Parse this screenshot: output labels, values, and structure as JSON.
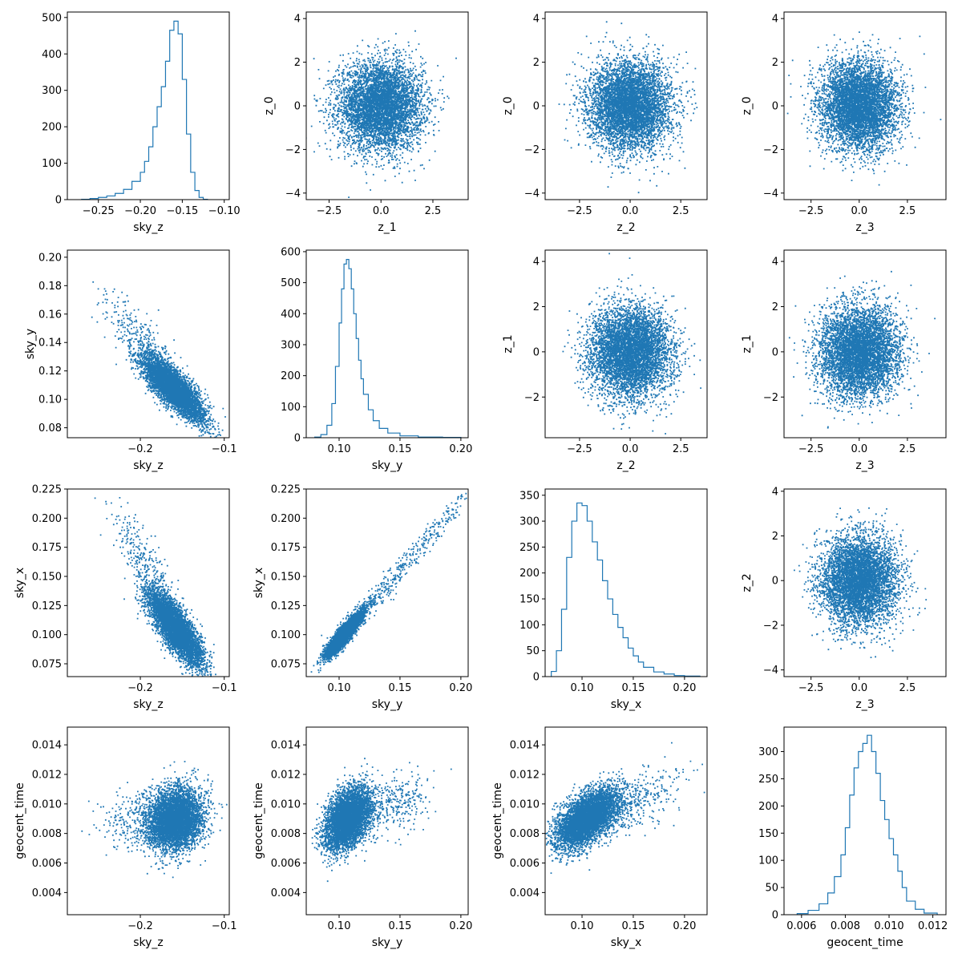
{
  "figure": {
    "type": "corner-plot",
    "marker_color": "#1f77b4",
    "background": "#ffffff"
  },
  "chart_data": [
    {
      "id": "hist-sky_z",
      "type": "histogram",
      "xlabel": "sky_z",
      "ylabel": "",
      "xlim": [
        -0.287,
        -0.094
      ],
      "ylim": [
        0,
        515
      ],
      "xticks": [
        -0.25,
        -0.2,
        -0.15,
        -0.1
      ],
      "xtick_labels": [
        "−0.25",
        "−0.20",
        "−0.15",
        "−0.10"
      ],
      "yticks": [
        0,
        100,
        200,
        300,
        400,
        500
      ],
      "ytick_labels": [
        "0",
        "100",
        "200",
        "300",
        "400",
        "500"
      ],
      "bin_edges": [
        -0.27,
        -0.26,
        -0.25,
        -0.24,
        -0.23,
        -0.22,
        -0.21,
        -0.2,
        -0.195,
        -0.19,
        -0.185,
        -0.18,
        -0.175,
        -0.17,
        -0.165,
        -0.16,
        -0.155,
        -0.15,
        -0.145,
        -0.14,
        -0.135,
        -0.13,
        -0.125,
        -0.12
      ],
      "counts": [
        1,
        3,
        6,
        10,
        17,
        28,
        50,
        75,
        105,
        145,
        200,
        255,
        310,
        380,
        465,
        490,
        455,
        330,
        180,
        75,
        25,
        6,
        1
      ]
    },
    {
      "id": "scatter-z_1-z_0",
      "type": "scatter",
      "xlabel": "z_1",
      "ylabel": "z_0",
      "xlim": [
        -3.6,
        4.2
      ],
      "ylim": [
        -4.3,
        4.3
      ],
      "xticks": [
        -2.5,
        0,
        2.5
      ],
      "xtick_labels": [
        "−2.5",
        "0.0",
        "2.5"
      ],
      "yticks": [
        -4,
        -2,
        0,
        2,
        4
      ],
      "ytick_labels": [
        "−4",
        "−2",
        "0",
        "2",
        "4"
      ],
      "cloud": {
        "shape": "gaussian",
        "n_points": 10000,
        "mean": [
          0,
          0
        ],
        "std": [
          1,
          1
        ],
        "corr": 0
      }
    },
    {
      "id": "scatter-z_2-z_0",
      "type": "scatter",
      "xlabel": "z_2",
      "ylabel": "z_0",
      "xlim": [
        -4.2,
        3.8
      ],
      "ylim": [
        -4.3,
        4.3
      ],
      "xticks": [
        -2.5,
        0,
        2.5
      ],
      "xtick_labels": [
        "−2.5",
        "0.0",
        "2.5"
      ],
      "yticks": [
        -4,
        -2,
        0,
        2,
        4
      ],
      "ytick_labels": [
        "−4",
        "−2",
        "0",
        "2",
        "4"
      ],
      "cloud": {
        "shape": "gaussian",
        "n_points": 10000,
        "mean": [
          0,
          0
        ],
        "std": [
          1,
          1
        ],
        "corr": 0
      }
    },
    {
      "id": "scatter-z_3-z_0",
      "type": "scatter",
      "xlabel": "z_3",
      "ylabel": "z_0",
      "xlim": [
        -3.9,
        4.5
      ],
      "ylim": [
        -4.3,
        4.3
      ],
      "xticks": [
        -2.5,
        0,
        2.5
      ],
      "xtick_labels": [
        "−2.5",
        "0.0",
        "2.5"
      ],
      "yticks": [
        -4,
        -2,
        0,
        2,
        4
      ],
      "ytick_labels": [
        "−4",
        "−2",
        "0",
        "2",
        "4"
      ],
      "cloud": {
        "shape": "gaussian",
        "n_points": 10000,
        "mean": [
          0,
          0
        ],
        "std": [
          1,
          1
        ],
        "corr": 0
      }
    },
    {
      "id": "scatter-sky_z-sky_y",
      "type": "scatter",
      "xlabel": "sky_z",
      "ylabel": "sky_y",
      "xlim": [
        -0.287,
        -0.094
      ],
      "ylim": [
        0.073,
        0.205
      ],
      "xticks": [
        -0.2,
        -0.1
      ],
      "xtick_labels": [
        "−0.2",
        "−0.1"
      ],
      "yticks": [
        0.08,
        0.1,
        0.12,
        0.14,
        0.16,
        0.18,
        0.2
      ],
      "ytick_labels": [
        "0.08",
        "0.10",
        "0.12",
        "0.14",
        "0.16",
        "0.18",
        "0.20"
      ],
      "cloud": {
        "shape": "skewed",
        "n_points": 10000,
        "mean": [
          -0.16,
          0.107
        ],
        "std": [
          0.018,
          0.011
        ],
        "corr": -0.8,
        "tail_dir": [
          -0.068,
          0.058
        ]
      }
    },
    {
      "id": "hist-sky_y",
      "type": "histogram",
      "xlabel": "sky_y",
      "ylabel": "",
      "xlim": [
        0.073,
        0.206
      ],
      "ylim": [
        0,
        605
      ],
      "xticks": [
        0.1,
        0.15,
        0.2
      ],
      "xtick_labels": [
        "0.10",
        "0.15",
        "0.20"
      ],
      "yticks": [
        0,
        100,
        200,
        300,
        400,
        500,
        600
      ],
      "ytick_labels": [
        "0",
        "100",
        "200",
        "300",
        "400",
        "500",
        "600"
      ],
      "bin_edges": [
        0.08,
        0.085,
        0.09,
        0.094,
        0.097,
        0.1,
        0.102,
        0.104,
        0.106,
        0.108,
        0.11,
        0.112,
        0.114,
        0.116,
        0.118,
        0.12,
        0.124,
        0.128,
        0.133,
        0.14,
        0.15,
        0.165,
        0.185,
        0.2
      ],
      "counts": [
        2,
        10,
        40,
        110,
        230,
        370,
        480,
        560,
        575,
        545,
        480,
        400,
        320,
        250,
        190,
        140,
        90,
        55,
        30,
        15,
        6,
        2,
        1
      ]
    },
    {
      "id": "scatter-z_2-z_1",
      "type": "scatter",
      "xlabel": "z_2",
      "ylabel": "z_1",
      "xlim": [
        -4.2,
        3.8
      ],
      "ylim": [
        -3.8,
        4.5
      ],
      "xticks": [
        -2.5,
        0,
        2.5
      ],
      "xtick_labels": [
        "−2.5",
        "0.0",
        "2.5"
      ],
      "yticks": [
        -2,
        0,
        2,
        4
      ],
      "ytick_labels": [
        "−2",
        "0",
        "2",
        "4"
      ],
      "cloud": {
        "shape": "gaussian",
        "n_points": 10000,
        "mean": [
          0,
          0
        ],
        "std": [
          1,
          1
        ],
        "corr": 0
      }
    },
    {
      "id": "scatter-z_3-z_1",
      "type": "scatter",
      "xlabel": "z_3",
      "ylabel": "z_1",
      "xlim": [
        -3.9,
        4.5
      ],
      "ylim": [
        -3.8,
        4.5
      ],
      "xticks": [
        -2.5,
        0,
        2.5
      ],
      "xtick_labels": [
        "−2.5",
        "0.0",
        "2.5"
      ],
      "yticks": [
        -2,
        0,
        2,
        4
      ],
      "ytick_labels": [
        "−2",
        "0",
        "2",
        "4"
      ],
      "cloud": {
        "shape": "gaussian",
        "n_points": 10000,
        "mean": [
          0,
          0
        ],
        "std": [
          1,
          1
        ],
        "corr": 0
      }
    },
    {
      "id": "scatter-sky_z-sky_x",
      "type": "scatter",
      "xlabel": "sky_z",
      "ylabel": "sky_x",
      "xlim": [
        -0.287,
        -0.094
      ],
      "ylim": [
        0.064,
        0.225
      ],
      "xticks": [
        -0.2,
        -0.1
      ],
      "xtick_labels": [
        "−0.2",
        "−0.1"
      ],
      "yticks": [
        0.075,
        0.1,
        0.125,
        0.15,
        0.175,
        0.2,
        0.225
      ],
      "ytick_labels": [
        "0.075",
        "0.100",
        "0.125",
        "0.150",
        "0.175",
        "0.200",
        "0.225"
      ],
      "cloud": {
        "shape": "skewed",
        "n_points": 10000,
        "mean": [
          -0.158,
          0.105
        ],
        "std": [
          0.016,
          0.016
        ],
        "corr": -0.8,
        "tail_dir": [
          -0.06,
          0.09
        ]
      }
    },
    {
      "id": "scatter-sky_y-sky_x",
      "type": "scatter",
      "xlabel": "sky_y",
      "ylabel": "sky_x",
      "xlim": [
        0.073,
        0.206
      ],
      "ylim": [
        0.064,
        0.225
      ],
      "xticks": [
        0.1,
        0.15,
        0.2
      ],
      "xtick_labels": [
        "0.10",
        "0.15",
        "0.20"
      ],
      "yticks": [
        0.075,
        0.1,
        0.125,
        0.15,
        0.175,
        0.2,
        0.225
      ],
      "ytick_labels": [
        "0.075",
        "0.100",
        "0.125",
        "0.150",
        "0.175",
        "0.200",
        "0.225"
      ],
      "cloud": {
        "shape": "skewed",
        "n_points": 10000,
        "mean": [
          0.104,
          0.1
        ],
        "std": [
          0.007,
          0.009
        ],
        "corr": 0.9,
        "tail_dir": [
          0.092,
          0.11
        ]
      }
    },
    {
      "id": "hist-sky_x",
      "type": "histogram",
      "xlabel": "sky_x",
      "ylabel": "",
      "xlim": [
        0.064,
        0.222
      ],
      "ylim": [
        0,
        362
      ],
      "xticks": [
        0.1,
        0.15,
        0.2
      ],
      "xtick_labels": [
        "0.10",
        "0.15",
        "0.20"
      ],
      "yticks": [
        0,
        50,
        100,
        150,
        200,
        250,
        300,
        350
      ],
      "ytick_labels": [
        "0",
        "50",
        "100",
        "150",
        "200",
        "250",
        "300",
        "350"
      ],
      "bin_edges": [
        0.07,
        0.075,
        0.08,
        0.085,
        0.09,
        0.095,
        0.1,
        0.105,
        0.11,
        0.115,
        0.12,
        0.125,
        0.13,
        0.135,
        0.14,
        0.145,
        0.15,
        0.155,
        0.16,
        0.17,
        0.18,
        0.19,
        0.2,
        0.215
      ],
      "counts": [
        10,
        50,
        130,
        230,
        300,
        335,
        330,
        300,
        260,
        225,
        185,
        150,
        120,
        95,
        75,
        55,
        40,
        28,
        18,
        9,
        5,
        2,
        1
      ]
    },
    {
      "id": "scatter-z_3-z_2",
      "type": "scatter",
      "xlabel": "z_3",
      "ylabel": "z_2",
      "xlim": [
        -3.9,
        4.5
      ],
      "ylim": [
        -4.3,
        4.1
      ],
      "xticks": [
        -2.5,
        0,
        2.5
      ],
      "xtick_labels": [
        "−2.5",
        "0.0",
        "2.5"
      ],
      "yticks": [
        -4,
        -2,
        0,
        2,
        4
      ],
      "ytick_labels": [
        "−4",
        "−2",
        "0",
        "2",
        "4"
      ],
      "cloud": {
        "shape": "gaussian",
        "n_points": 10000,
        "mean": [
          0,
          0
        ],
        "std": [
          1,
          1
        ],
        "corr": 0
      }
    },
    {
      "id": "scatter-sky_z-geocent_time",
      "type": "scatter",
      "xlabel": "sky_z",
      "ylabel": "geocent_time",
      "xlim": [
        -0.287,
        -0.094
      ],
      "ylim": [
        0.0025,
        0.0152
      ],
      "xticks": [
        -0.2,
        -0.1
      ],
      "xtick_labels": [
        "−0.2",
        "−0.1"
      ],
      "yticks": [
        0.004,
        0.006,
        0.008,
        0.01,
        0.012,
        0.014
      ],
      "ytick_labels": [
        "0.004",
        "0.006",
        "0.008",
        "0.010",
        "0.012",
        "0.014"
      ],
      "cloud": {
        "shape": "skewed",
        "n_points": 10000,
        "mean": [
          -0.158,
          0.009
        ],
        "std": [
          0.016,
          0.001
        ],
        "corr": 0.1,
        "tail_dir": [
          -0.07,
          -0.0005
        ]
      }
    },
    {
      "id": "scatter-sky_y-geocent_time",
      "type": "scatter",
      "xlabel": "sky_y",
      "ylabel": "geocent_time",
      "xlim": [
        0.073,
        0.206
      ],
      "ylim": [
        0.0025,
        0.0152
      ],
      "xticks": [
        0.1,
        0.15,
        0.2
      ],
      "xtick_labels": [
        "0.10",
        "0.15",
        "0.20"
      ],
      "yticks": [
        0.004,
        0.006,
        0.008,
        0.01,
        0.012,
        0.014
      ],
      "ytick_labels": [
        "0.004",
        "0.006",
        "0.008",
        "0.010",
        "0.012",
        "0.014"
      ],
      "cloud": {
        "shape": "skewed",
        "n_points": 10000,
        "mean": [
          0.107,
          0.009
        ],
        "std": [
          0.009,
          0.001
        ],
        "corr": 0.4,
        "tail_dir": [
          0.06,
          0.0015
        ]
      }
    },
    {
      "id": "scatter-sky_x-geocent_time",
      "type": "scatter",
      "xlabel": "sky_x",
      "ylabel": "geocent_time",
      "xlim": [
        0.064,
        0.222
      ],
      "ylim": [
        0.0025,
        0.0152
      ],
      "xticks": [
        0.1,
        0.15,
        0.2
      ],
      "xtick_labels": [
        "0.10",
        "0.15",
        "0.20"
      ],
      "yticks": [
        0.004,
        0.006,
        0.008,
        0.01,
        0.012,
        0.014
      ],
      "ytick_labels": [
        "0.004",
        "0.006",
        "0.008",
        "0.010",
        "0.012",
        "0.014"
      ],
      "cloud": {
        "shape": "skewed",
        "n_points": 10000,
        "mean": [
          0.105,
          0.009
        ],
        "std": [
          0.015,
          0.001
        ],
        "corr": 0.55,
        "tail_dir": [
          0.08,
          0.002
        ]
      }
    },
    {
      "id": "hist-geocent_time",
      "type": "histogram",
      "xlabel": "geocent_time",
      "ylabel": "",
      "xlim": [
        0.0052,
        0.0126
      ],
      "ylim": [
        0,
        345
      ],
      "xticks": [
        0.006,
        0.008,
        0.01,
        0.012
      ],
      "xtick_labels": [
        "0.006",
        "0.008",
        "0.010",
        "0.012"
      ],
      "yticks": [
        0,
        50,
        100,
        150,
        200,
        250,
        300
      ],
      "ytick_labels": [
        "0",
        "50",
        "100",
        "150",
        "200",
        "250",
        "300"
      ],
      "bin_edges": [
        0.0058,
        0.0063,
        0.0068,
        0.0072,
        0.0075,
        0.0078,
        0.008,
        0.0082,
        0.0084,
        0.0086,
        0.0088,
        0.009,
        0.0092,
        0.0094,
        0.0096,
        0.0098,
        0.01,
        0.0102,
        0.0104,
        0.0106,
        0.0108,
        0.0112,
        0.0116,
        0.0122
      ],
      "counts": [
        2,
        8,
        20,
        40,
        70,
        110,
        160,
        220,
        270,
        300,
        315,
        330,
        300,
        260,
        210,
        175,
        140,
        110,
        80,
        50,
        25,
        10,
        3
      ]
    }
  ]
}
